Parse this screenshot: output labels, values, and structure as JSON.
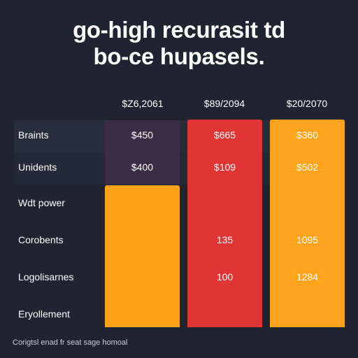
{
  "title": {
    "line1": "go-high recurasit td",
    "line2": "bo-ce hupasels."
  },
  "columns": [
    {
      "header": "$Z6,2061"
    },
    {
      "header": "$89/2094"
    },
    {
      "header": "$20/2070"
    }
  ],
  "rows": [
    {
      "label": "Braints",
      "values": [
        "$450",
        "$665",
        "$360"
      ]
    },
    {
      "label": "Unidents",
      "values": [
        "$400",
        "$109",
        "$502"
      ]
    },
    {
      "label": "Wdt power",
      "values": [
        "",
        "",
        ""
      ]
    },
    {
      "label": "Corobents",
      "values": [
        "",
        "135",
        "1095"
      ]
    },
    {
      "label": "Logolisarnes",
      "values": [
        "",
        "100",
        "1284"
      ]
    },
    {
      "label": "Eryollement",
      "values": [
        "",
        "",
        ""
      ]
    }
  ],
  "caption": "Corigtsl enad fr seat sage homoal",
  "colors": {
    "background": "#1f2430",
    "row_band": "#262d3b",
    "column1_top": "#3a2d45",
    "column1_bottom": "#ffa31a",
    "column2": "#e03535",
    "column3": "#ffa41c"
  }
}
